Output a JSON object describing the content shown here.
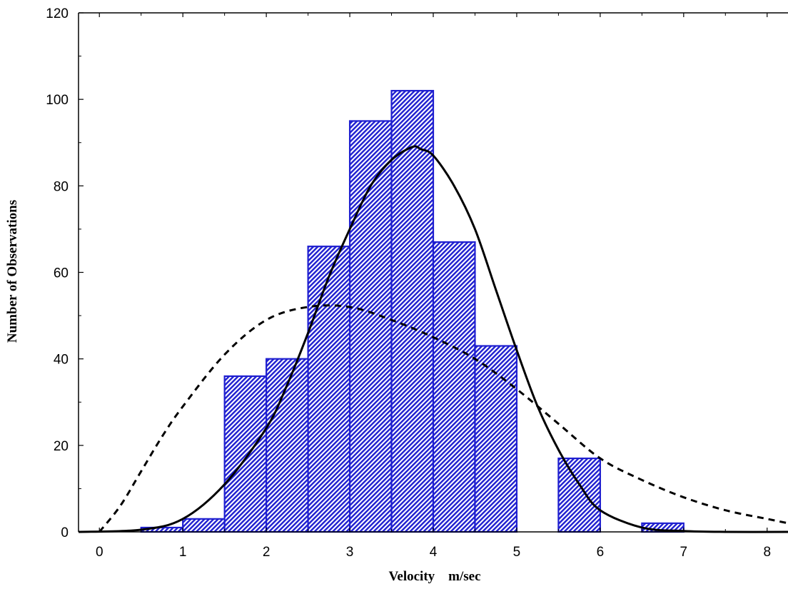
{
  "chart_data": {
    "type": "bar",
    "title": "",
    "xlabel": "Velocity    m/sec",
    "ylabel": "Number of Observations",
    "xlim": [
      -0.25,
      8.25
    ],
    "ylim": [
      0,
      120
    ],
    "xticks": [
      0,
      1,
      2,
      3,
      4,
      5,
      6,
      7,
      8
    ],
    "yticks": [
      0,
      20,
      40,
      60,
      80,
      100,
      120
    ],
    "grid": false,
    "bar_color": "#1f1fd0",
    "bins": [
      {
        "x0": 0.5,
        "x1": 1.0,
        "value": 1
      },
      {
        "x0": 1.0,
        "x1": 1.5,
        "value": 3
      },
      {
        "x0": 1.5,
        "x1": 2.0,
        "value": 36
      },
      {
        "x0": 2.0,
        "x1": 2.5,
        "value": 40
      },
      {
        "x0": 2.5,
        "x1": 3.0,
        "value": 66
      },
      {
        "x0": 3.0,
        "x1": 3.5,
        "value": 95
      },
      {
        "x0": 3.5,
        "x1": 4.0,
        "value": 102
      },
      {
        "x0": 4.0,
        "x1": 4.5,
        "value": 67
      },
      {
        "x0": 4.5,
        "x1": 5.0,
        "value": 43
      },
      {
        "x0": 5.5,
        "x1": 6.0,
        "value": 17
      },
      {
        "x0": 6.5,
        "x1": 7.0,
        "value": 2
      }
    ],
    "series": [
      {
        "style": "solid",
        "x": [
          -0.25,
          0.5,
          1.0,
          1.5,
          2.0,
          2.25,
          2.5,
          2.75,
          3.0,
          3.25,
          3.5,
          3.75,
          3.85,
          4.0,
          4.25,
          4.5,
          4.75,
          5.0,
          5.25,
          5.5,
          5.75,
          6.0,
          6.5,
          7.0,
          7.5,
          8.25
        ],
        "y": [
          0,
          0.5,
          3,
          11,
          24,
          34,
          46,
          59,
          70,
          80,
          86,
          89,
          88.5,
          87,
          80,
          70,
          56,
          42,
          29,
          19,
          11,
          5,
          1,
          0.2,
          0,
          0
        ]
      },
      {
        "style": "dashed",
        "x": [
          0.0,
          0.25,
          0.5,
          0.75,
          1.0,
          1.5,
          2.0,
          2.5,
          3.0,
          3.5,
          4.0,
          4.5,
          5.0,
          5.5,
          6.0,
          6.5,
          7.0,
          7.5,
          8.0,
          8.25
        ],
        "y": [
          0,
          6,
          14,
          22,
          29,
          41,
          49,
          52,
          52,
          49,
          45,
          40,
          33,
          25,
          17,
          12,
          8,
          5,
          3,
          2
        ]
      }
    ]
  }
}
